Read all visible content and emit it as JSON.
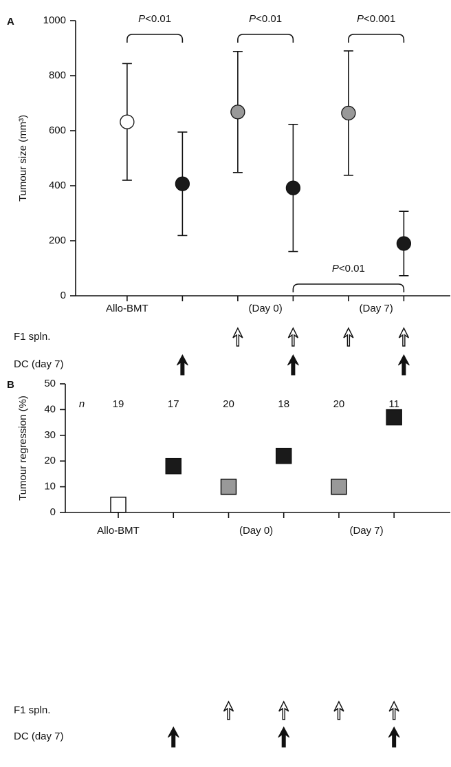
{
  "chart_data": [
    {
      "type": "scatter",
      "panel": "A",
      "ylabel": "Tumour size (mm³)",
      "x": [
        1,
        2,
        3,
        4,
        5,
        6
      ],
      "values": [
        632,
        407,
        668,
        392,
        664,
        190
      ],
      "errors": [
        212,
        188,
        220,
        231,
        226,
        117
      ],
      "colors": [
        "#ffffff",
        "#1a1a1a",
        "#999999",
        "#1a1a1a",
        "#999999",
        "#1a1a1a"
      ],
      "xlim": [
        0.07,
        6.84
      ],
      "xticks": [
        1,
        2,
        3,
        4,
        5,
        6
      ],
      "ylim": [
        0,
        1000
      ],
      "yticks": [
        0,
        200,
        400,
        600,
        800,
        1000
      ],
      "x_labels": [
        {
          "value": 1,
          "label": "Allo-BMT"
        },
        {
          "value": 3.5,
          "label": "(Day 0)"
        },
        {
          "value": 5.5,
          "label": "(Day 7)"
        }
      ],
      "brackets": [
        {
          "label": "P<0.01",
          "from": 1,
          "to": 2
        },
        {
          "label": "P<0.01",
          "from": 3,
          "to": 4
        },
        {
          "label": "P<0.001",
          "from": 5,
          "to": 6
        },
        {
          "label": "P<0.01",
          "from": 4,
          "to": 6,
          "low": true
        }
      ],
      "treatments": [
        {
          "label": "F1 spln.",
          "at": [
            3,
            4,
            5,
            6
          ]
        },
        {
          "label": "DC (day 7)",
          "at": [
            2,
            4,
            6
          ],
          "bold": true
        }
      ]
    },
    {
      "type": "square",
      "panel": "B",
      "ylabel": "Tumour regression (%)",
      "x": [
        1,
        2,
        3,
        4,
        5,
        6
      ],
      "values": [
        3,
        18,
        10,
        22,
        10,
        37
      ],
      "colors": [
        "#ffffff",
        "#1a1a1a",
        "#999999",
        "#1a1a1a",
        "#999999",
        "#1a1a1a"
      ],
      "xlim": [
        0.04,
        7.02
      ],
      "xticks": [
        1,
        2,
        3,
        4,
        5,
        6
      ],
      "ylim": [
        0,
        50
      ],
      "yticks": [
        0,
        10,
        20,
        30,
        40,
        50
      ],
      "n_label": "n",
      "n_values": [
        19,
        17,
        20,
        18,
        20,
        11
      ],
      "x_labels": [
        {
          "value": 1,
          "label": "Allo-BMT"
        },
        {
          "value": 3.5,
          "label": "(Day 0)"
        },
        {
          "value": 5.5,
          "label": "(Day 7)"
        }
      ],
      "treatments": [
        {
          "label": "F1 spln.",
          "at": [
            3,
            4,
            5,
            6
          ]
        },
        {
          "label": "DC (day 7)",
          "at": [
            2,
            4,
            6
          ],
          "bold": true
        }
      ]
    }
  ]
}
